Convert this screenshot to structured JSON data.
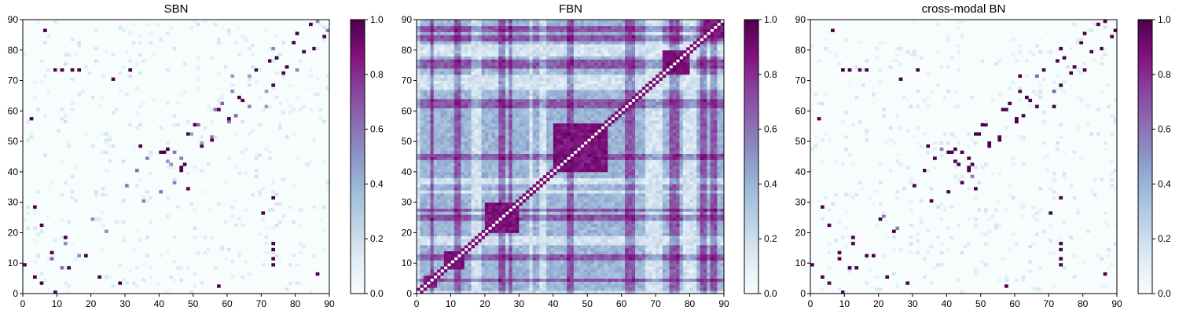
{
  "chart_data": [
    {
      "type": "heatmap",
      "title": "SBN",
      "xlim": [
        0,
        90
      ],
      "ylim": [
        0,
        90
      ],
      "xticks": [
        "0",
        "10",
        "20",
        "30",
        "40",
        "50",
        "60",
        "70",
        "80",
        "90"
      ],
      "yticks": [
        "0",
        "10",
        "20",
        "30",
        "40",
        "50",
        "60",
        "70",
        "80",
        "90"
      ],
      "matrix_size": 90,
      "colorbar": {
        "range": [
          0,
          1
        ],
        "ticks": [
          "0.0",
          "0.2",
          "0.4",
          "0.6",
          "0.8",
          "1.0"
        ]
      },
      "colormap": "BuPu",
      "pattern": "sparse",
      "strong_links": [
        [
          28,
          3
        ],
        [
          18,
          12
        ],
        [
          22,
          5
        ],
        [
          13,
          8
        ],
        [
          34,
          48
        ],
        [
          40,
          46
        ],
        [
          46,
          41
        ],
        [
          47,
          42
        ],
        [
          52,
          48
        ],
        [
          55,
          50
        ],
        [
          60,
          57
        ],
        [
          64,
          63
        ],
        [
          73,
          68
        ],
        [
          76,
          72
        ],
        [
          77,
          74
        ],
        [
          82,
          79
        ],
        [
          85,
          80
        ],
        [
          88,
          84
        ],
        [
          9,
          73
        ],
        [
          11,
          73
        ],
        [
          14,
          73
        ],
        [
          16,
          73
        ],
        [
          3,
          5
        ],
        [
          41,
          46
        ],
        [
          31,
          73
        ],
        [
          9,
          0
        ],
        [
          26,
          70
        ],
        [
          6,
          86
        ],
        [
          2,
          57
        ]
      ],
      "medium_links": [
        [
          30,
          35
        ],
        [
          33,
          40
        ],
        [
          36,
          44
        ],
        [
          42,
          43
        ],
        [
          44,
          46
        ],
        [
          49,
          52
        ],
        [
          56,
          60
        ],
        [
          61,
          66
        ],
        [
          66,
          71
        ],
        [
          71,
          61
        ],
        [
          80,
          73
        ],
        [
          86,
          89
        ],
        [
          24,
          20
        ],
        [
          8,
          11
        ],
        [
          12,
          16
        ],
        [
          51,
          55
        ],
        [
          58,
          62
        ]
      ]
    },
    {
      "type": "heatmap",
      "title": "FBN",
      "xlim": [
        0,
        90
      ],
      "ylim": [
        0,
        90
      ],
      "xticks": [
        "0",
        "10",
        "20",
        "30",
        "40",
        "50",
        "60",
        "70",
        "80",
        "90"
      ],
      "yticks": [
        "0",
        "10",
        "20",
        "30",
        "40",
        "50",
        "60",
        "70",
        "80",
        "90"
      ],
      "matrix_size": 90,
      "colorbar": {
        "range": [
          0,
          1
        ],
        "ticks": [
          "0.0",
          "0.2",
          "0.4",
          "0.6",
          "0.8",
          "1.0"
        ]
      },
      "colormap": "BuPu",
      "pattern": "dense",
      "strong_blocks": [
        [
          20,
          30,
          20,
          30
        ],
        [
          40,
          56,
          40,
          56
        ],
        [
          72,
          80,
          72,
          80
        ],
        [
          84,
          90,
          84,
          90
        ],
        [
          2,
          6,
          2,
          6
        ],
        [
          8,
          14,
          8,
          14
        ]
      ],
      "strong_rows": [
        4,
        11,
        12,
        24,
        25,
        27,
        44,
        45,
        61,
        62,
        63,
        74,
        75,
        76,
        83,
        84,
        86,
        87
      ],
      "weak_rows": [
        0,
        16,
        17,
        18,
        33,
        36,
        37,
        67,
        68,
        69,
        70,
        71,
        78,
        79,
        80,
        81
      ]
    },
    {
      "type": "heatmap",
      "title": "cross-modal BN",
      "xlim": [
        0,
        90
      ],
      "ylim": [
        0,
        90
      ],
      "xticks": [
        "0",
        "10",
        "20",
        "30",
        "40",
        "50",
        "60",
        "70",
        "80",
        "90"
      ],
      "yticks": [
        "0",
        "10",
        "20",
        "30",
        "40",
        "50",
        "60",
        "70",
        "80",
        "90"
      ],
      "matrix_size": 90,
      "colorbar": {
        "range": [
          0,
          1
        ],
        "ticks": [
          "0.0",
          "0.2",
          "0.4",
          "0.6",
          "0.8",
          "1.0"
        ]
      },
      "colormap": "BuPu",
      "pattern": "sparse",
      "strong_links": [
        [
          28,
          3
        ],
        [
          18,
          12
        ],
        [
          22,
          5
        ],
        [
          13,
          8
        ],
        [
          34,
          48
        ],
        [
          40,
          46
        ],
        [
          46,
          41
        ],
        [
          47,
          42
        ],
        [
          52,
          48
        ],
        [
          55,
          50
        ],
        [
          60,
          57
        ],
        [
          64,
          63
        ],
        [
          73,
          68
        ],
        [
          76,
          72
        ],
        [
          77,
          74
        ],
        [
          82,
          79
        ],
        [
          85,
          80
        ],
        [
          88,
          84
        ],
        [
          9,
          73
        ],
        [
          11,
          73
        ],
        [
          14,
          73
        ],
        [
          16,
          73
        ],
        [
          3,
          5
        ],
        [
          41,
          46
        ],
        [
          31,
          73
        ],
        [
          9,
          0
        ],
        [
          26,
          70
        ],
        [
          6,
          86
        ],
        [
          2,
          57
        ],
        [
          30,
          35
        ],
        [
          33,
          40
        ],
        [
          36,
          44
        ],
        [
          42,
          43
        ],
        [
          44,
          46
        ],
        [
          49,
          52
        ],
        [
          56,
          60
        ],
        [
          61,
          66
        ],
        [
          71,
          61
        ],
        [
          80,
          73
        ],
        [
          86,
          89
        ],
        [
          24,
          20
        ],
        [
          8,
          11
        ],
        [
          12,
          16
        ],
        [
          51,
          55
        ],
        [
          58,
          62
        ]
      ],
      "medium_links": [
        [
          66,
          71
        ],
        [
          21,
          25
        ],
        [
          38,
          47
        ]
      ]
    }
  ]
}
